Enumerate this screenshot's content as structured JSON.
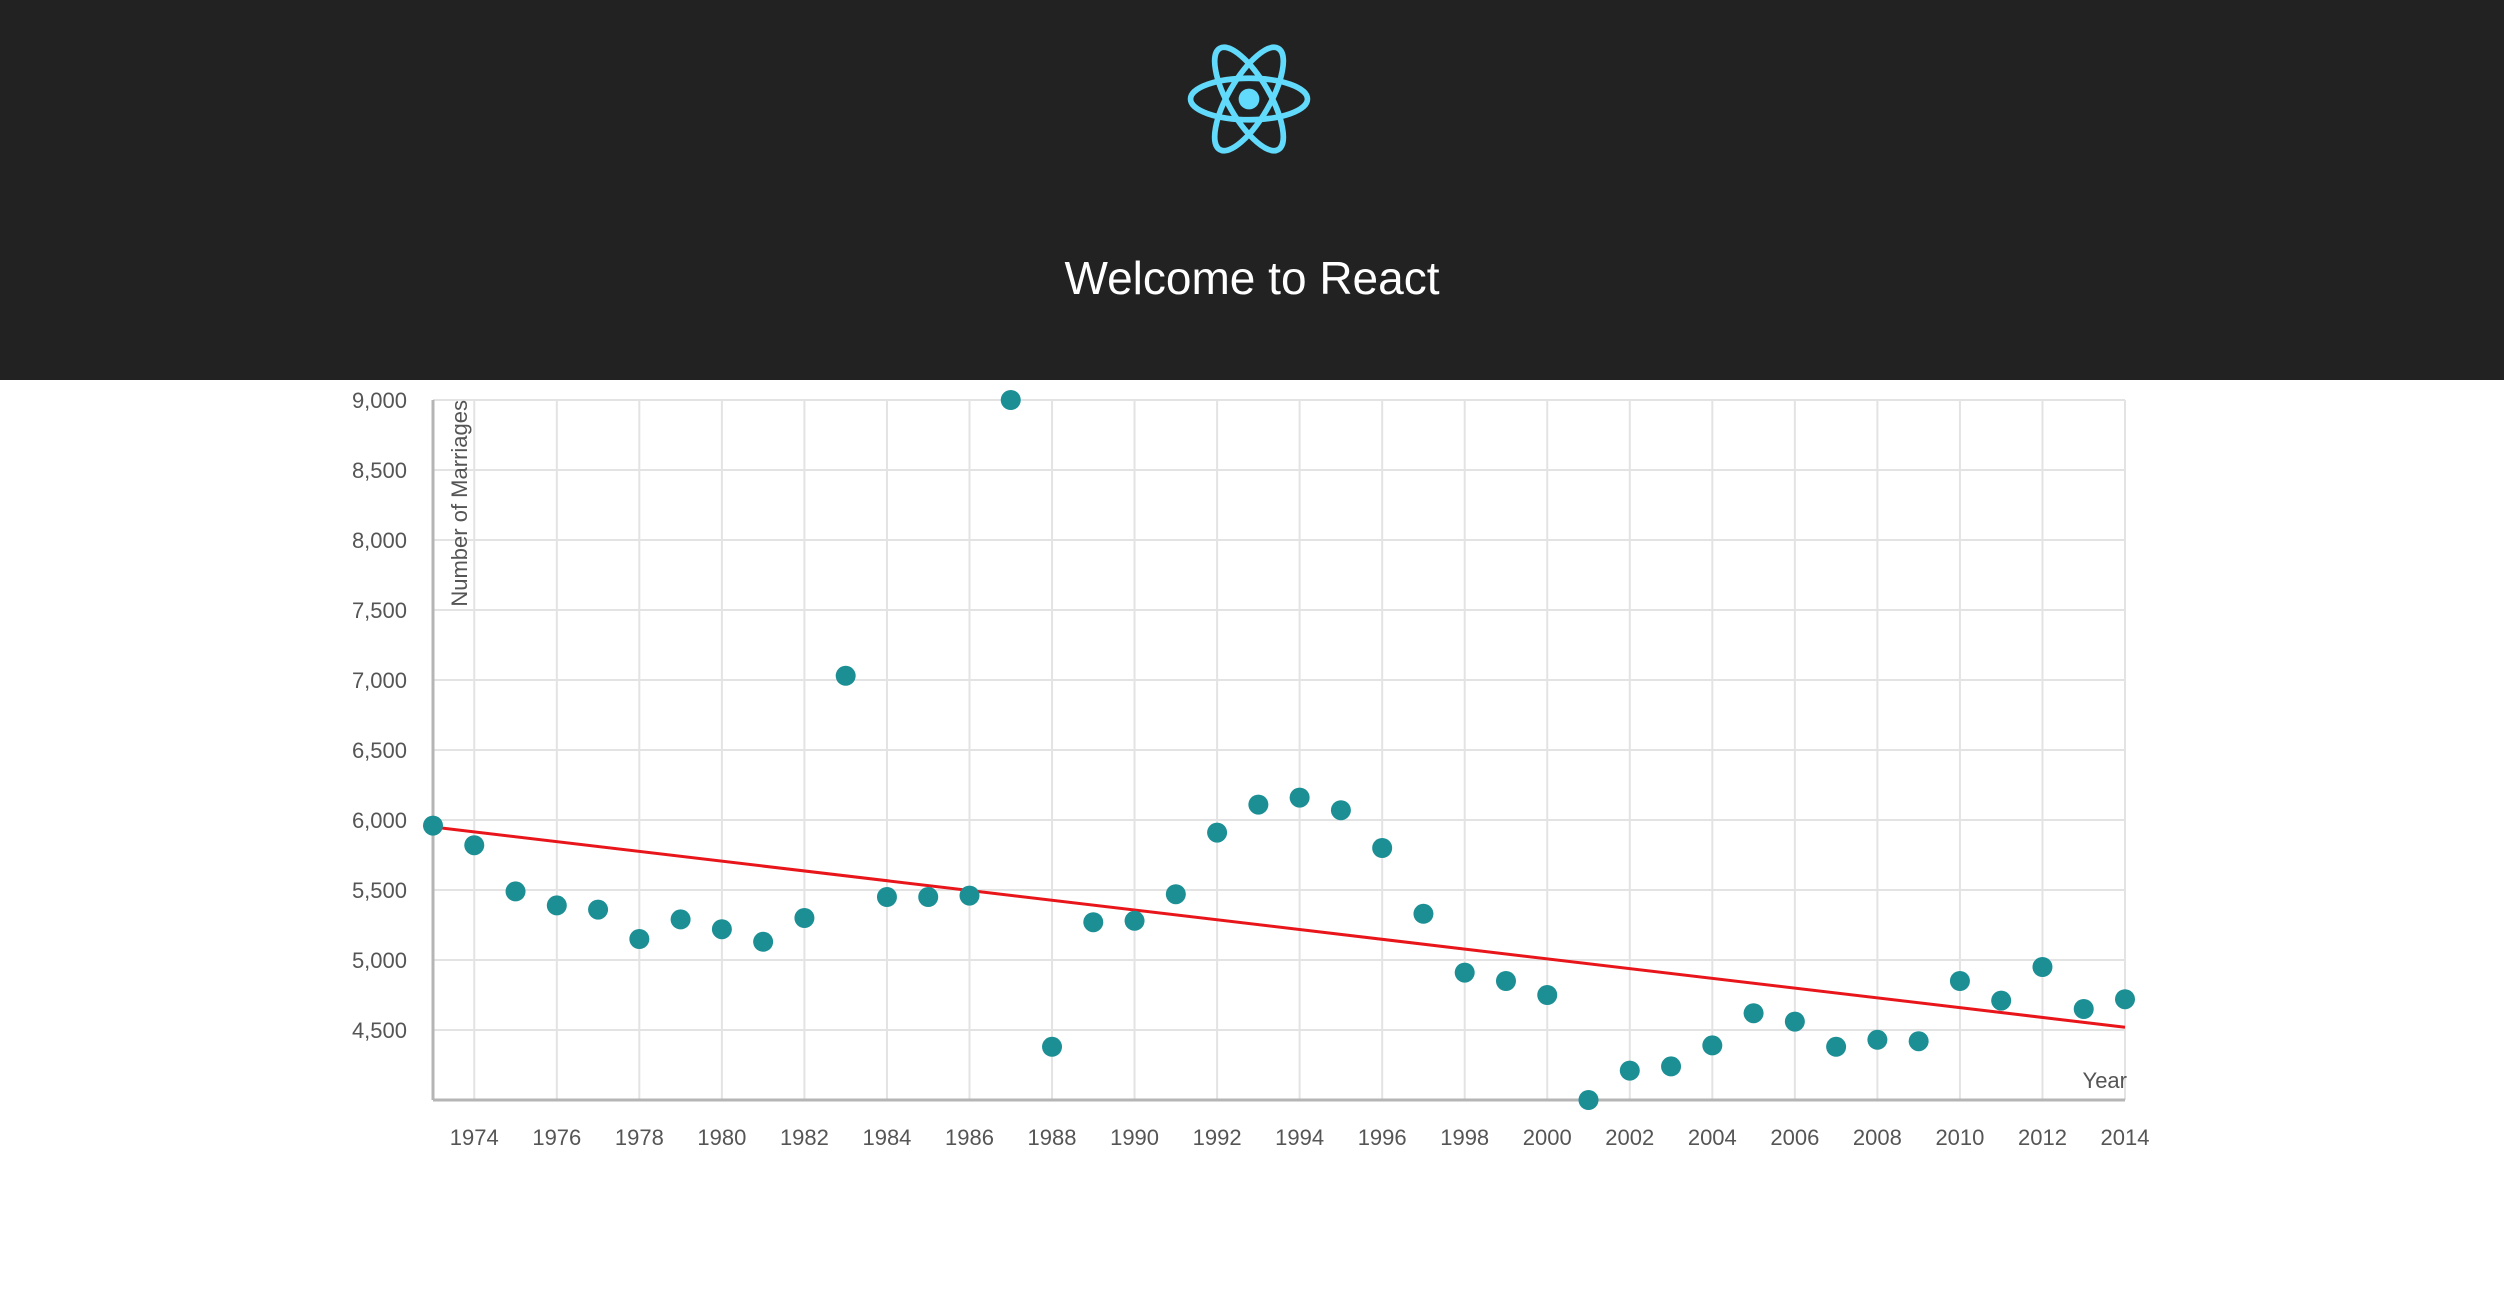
{
  "header": {
    "title": "Welcome to React",
    "logo_icon": "react-atom-icon",
    "background": "#222222",
    "logo_color": "#61dafb"
  },
  "chart_data": {
    "type": "scatter",
    "xlabel": "Year",
    "ylabel": "Number of Marriages",
    "xlim": [
      1973,
      2014
    ],
    "ylim": [
      4000,
      9000
    ],
    "grid": true,
    "x_ticks": [
      1974,
      1976,
      1978,
      1980,
      1982,
      1984,
      1986,
      1988,
      1990,
      1992,
      1994,
      1996,
      1998,
      2000,
      2002,
      2004,
      2006,
      2008,
      2010,
      2012,
      2014
    ],
    "x_tick_labels": [
      "1974",
      "1976",
      "1978",
      "1980",
      "1982",
      "1984",
      "1986",
      "1988",
      "1990",
      "1992",
      "1994",
      "1996",
      "1998",
      "2000",
      "2002",
      "2004",
      "2006",
      "2008",
      "2010",
      "2012",
      "2014"
    ],
    "y_ticks": [
      4500,
      5000,
      5500,
      6000,
      6500,
      7000,
      7500,
      8000,
      8500,
      9000
    ],
    "y_tick_labels": [
      "4,500",
      "5,000",
      "5,500",
      "6,000",
      "6,500",
      "7,000",
      "7,500",
      "8,000",
      "8,500",
      "9,000"
    ],
    "series": [
      {
        "points": [
          [
            1973,
            5960
          ],
          [
            1974,
            5820
          ],
          [
            1975,
            5490
          ],
          [
            1976,
            5390
          ],
          [
            1977,
            5360
          ],
          [
            1978,
            5150
          ],
          [
            1979,
            5290
          ],
          [
            1980,
            5220
          ],
          [
            1981,
            5130
          ],
          [
            1982,
            5300
          ],
          [
            1983,
            7030
          ],
          [
            1984,
            5450
          ],
          [
            1985,
            5450
          ],
          [
            1986,
            5460
          ],
          [
            1987,
            9000
          ],
          [
            1988,
            4380
          ],
          [
            1989,
            5270
          ],
          [
            1990,
            5280
          ],
          [
            1991,
            5470
          ],
          [
            1992,
            5910
          ],
          [
            1993,
            6110
          ],
          [
            1994,
            6160
          ],
          [
            1995,
            6070
          ],
          [
            1996,
            5800
          ],
          [
            1997,
            5330
          ],
          [
            1998,
            4910
          ],
          [
            1999,
            4850
          ],
          [
            2000,
            4750
          ],
          [
            2001,
            4000
          ],
          [
            2002,
            4210
          ],
          [
            2003,
            4240
          ],
          [
            2004,
            4390
          ],
          [
            2005,
            4620
          ],
          [
            2006,
            4560
          ],
          [
            2007,
            4380
          ],
          [
            2008,
            4430
          ],
          [
            2009,
            4420
          ],
          [
            2010,
            4850
          ],
          [
            2011,
            4710
          ],
          [
            2012,
            4950
          ],
          [
            2013,
            4650
          ],
          [
            2014,
            4720
          ]
        ],
        "color": "#1c8f95"
      }
    ],
    "trendline": {
      "x": [
        1973,
        2014
      ],
      "y": [
        5950,
        4520
      ],
      "color": "#e8161b"
    }
  }
}
